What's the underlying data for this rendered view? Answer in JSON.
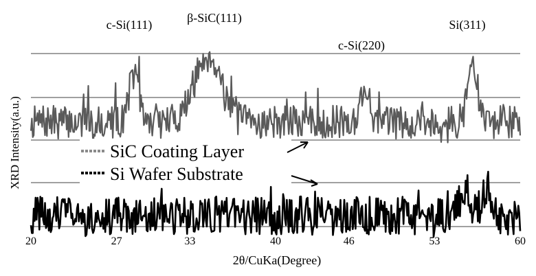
{
  "chart_data": {
    "type": "line",
    "xlabel": "2θ/CuKa(Degree)",
    "ylabel": "XRD Intensity(a.u.)",
    "xlim": [
      20,
      60
    ],
    "xticks": [
      "20",
      "27",
      "33",
      "40",
      "46",
      "53",
      "60"
    ],
    "xtick_values": [
      20,
      27,
      33,
      40,
      46,
      53,
      60
    ],
    "y_ticks_shown": false,
    "grid": "horizontal lines",
    "grid_color": "#808080",
    "legend_placement": "center-left",
    "series": [
      {
        "name": "SiC Coating Layer",
        "color": "#5a5a5a",
        "peaks": [
          {
            "x": 28.4,
            "height": 3.2
          },
          {
            "x": 34.5,
            "height": 4.4
          },
          {
            "x": 47.3,
            "height": 2.2
          },
          {
            "x": 56.1,
            "height": 3.9
          }
        ],
        "baseline": 1.0,
        "noise": 1.1
      },
      {
        "name": "Si Wafer Substrate",
        "color": "#000000",
        "peaks": [
          {
            "x": 55.5,
            "height": 1.8
          },
          {
            "x": 57.2,
            "height": 1.9
          }
        ],
        "baseline": 1.0,
        "noise": 1.4
      }
    ],
    "annotations": [
      {
        "text": "c-Si(111)",
        "x": 28.4
      },
      {
        "text": "β-SiC(111)",
        "x": 34.5
      },
      {
        "text": "c-Si(220)",
        "x": 47.3
      },
      {
        "text": "Si(311)",
        "x": 56.1
      }
    ]
  }
}
